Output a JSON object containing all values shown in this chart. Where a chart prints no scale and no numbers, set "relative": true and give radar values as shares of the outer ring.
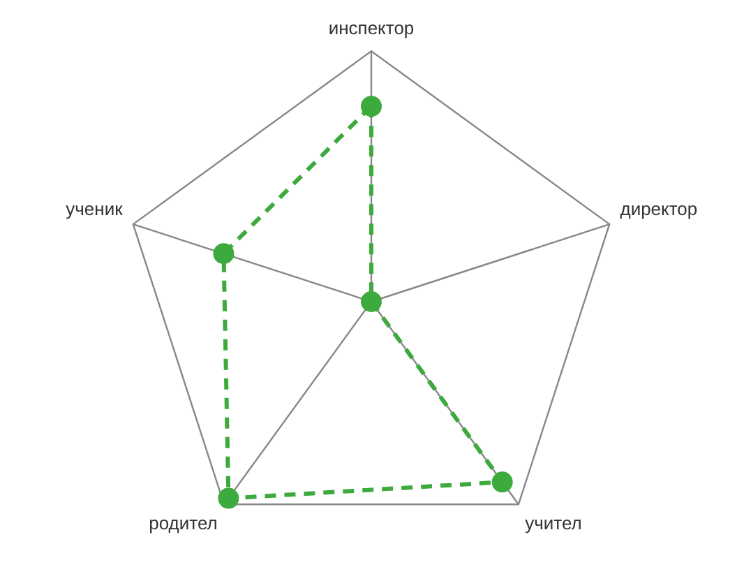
{
  "chart_data": {
    "type": "radar",
    "relative": true,
    "categories": [
      "инспектор",
      "директор",
      "учител",
      "родител",
      "ученик"
    ],
    "series": [
      {
        "color": "#3daa3d",
        "values": [
          0.78,
          0,
          0.89,
          0.97,
          0.62
        ]
      }
    ],
    "marker": "circle",
    "line_style": "dashed",
    "legend": false
  }
}
